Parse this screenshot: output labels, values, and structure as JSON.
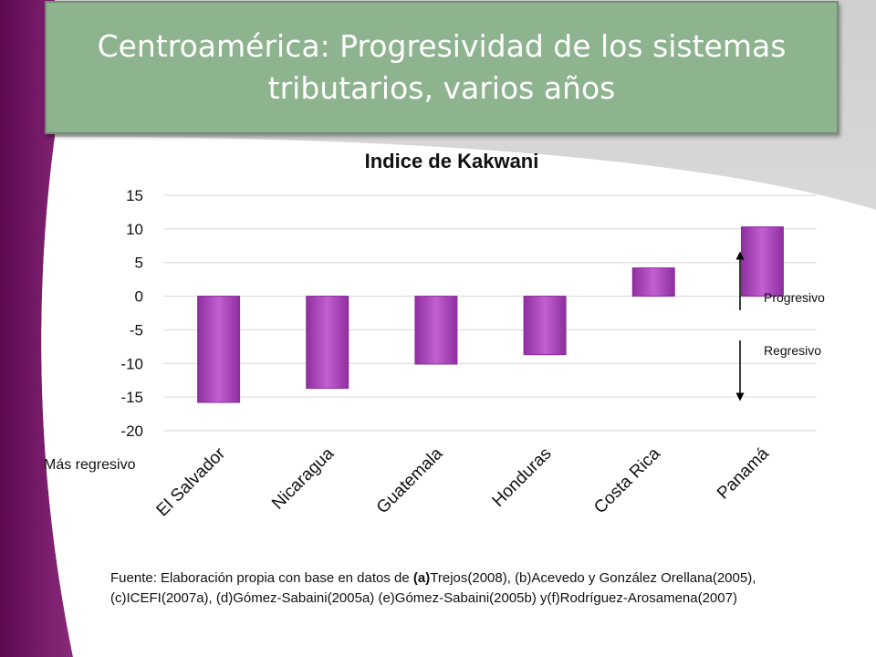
{
  "slide": {
    "title": "Centroamérica: Progresividad de los sistemas tributarios, varios años",
    "source_prefix": "Fuente:  Elaboración propia con base en datos de ",
    "source_bold": "(a)",
    "source_rest": "Trejos(2008), (b)Acevedo y  González Orellana(2005), (c)ICEFI(2007a), (d)Gómez-Sabaini(2005a) (e)Gómez-Sabaini(2005b) y(f)Rodríguez-Arosamena(2007)",
    "colors": {
      "title_bg": "#8db48e",
      "bar": "#a648b8",
      "accent": "#6b0a5e"
    }
  },
  "chart_data": {
    "type": "bar",
    "title": "Indice de Kakwani",
    "categories": [
      "El Salvador",
      "Nicaragua",
      "Guatemala",
      "Honduras",
      "Costa Rica",
      "Panamá"
    ],
    "values": [
      -15.8,
      -13.7,
      -10.1,
      -8.7,
      4.2,
      10.3
    ],
    "ylim": [
      -20,
      15
    ],
    "yticks": [
      15,
      10,
      5,
      0,
      -5,
      -10,
      -15,
      -20
    ],
    "grid": true,
    "annotations": {
      "progresivo": "Progresivo",
      "regresivo": "Regresivo",
      "mas_regresivo": "Más regresivo"
    }
  }
}
